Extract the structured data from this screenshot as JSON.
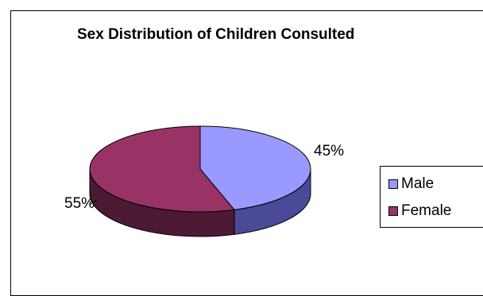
{
  "chart_data": {
    "type": "pie",
    "title": "Sex Distribution of Children Consulted",
    "categories": [
      "Male",
      "Female"
    ],
    "values": [
      45,
      55
    ],
    "data_labels": [
      "45%",
      "55%"
    ],
    "style": "3d",
    "legend_position": "right",
    "colors": {
      "male": "#9999ff",
      "female": "#993366"
    }
  }
}
